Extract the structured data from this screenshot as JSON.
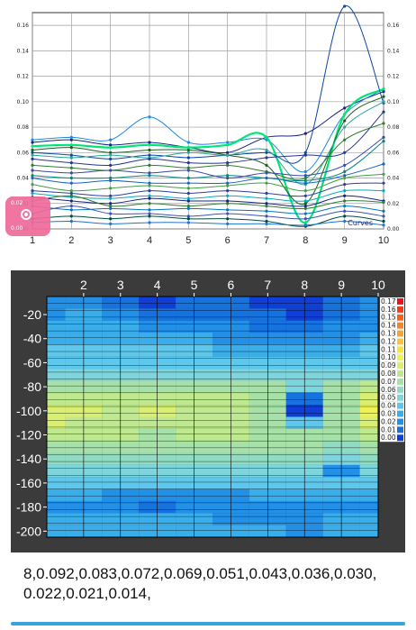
{
  "chart_data": [
    {
      "type": "line",
      "xlim": [
        1,
        10
      ],
      "ylim": [
        0,
        0.17
      ],
      "x_ticks": [
        "1",
        "2",
        "3",
        "4",
        "5",
        "6",
        "7",
        "8",
        "9",
        "10"
      ],
      "y_ticks": [
        "0.00",
        "0.02",
        "0.04",
        "0.06",
        "0.08",
        "0.10",
        "0.12",
        "0.14",
        "0.16"
      ],
      "grid": true,
      "annotation": "Curves",
      "x": [
        1,
        2,
        3,
        4,
        5,
        6,
        7,
        8,
        9,
        10
      ],
      "series": [
        {
          "color": "#1a237e",
          "values": [
            0.068,
            0.07,
            0.066,
            0.068,
            0.064,
            0.06,
            0.072,
            0.075,
            0.095,
            0.108
          ]
        },
        {
          "color": "#1e88e5",
          "values": [
            0.07,
            0.072,
            0.07,
            0.088,
            0.068,
            0.068,
            0.07,
            0.045,
            0.09,
            0.11
          ]
        },
        {
          "color": "#00e676",
          "values": [
            0.065,
            0.066,
            0.064,
            0.066,
            0.064,
            0.066,
            0.072,
            0.005,
            0.09,
            0.11
          ]
        },
        {
          "color": "#1b5e20",
          "values": [
            0.062,
            0.064,
            0.06,
            0.062,
            0.062,
            0.058,
            0.05,
            0.02,
            0.085,
            0.104
          ]
        },
        {
          "color": "#0d47a1",
          "values": [
            0.06,
            0.058,
            0.055,
            0.058,
            0.056,
            0.058,
            0.06,
            0.06,
            0.175,
            0.099
          ]
        },
        {
          "color": "#26a69a",
          "values": [
            0.058,
            0.056,
            0.058,
            0.056,
            0.06,
            0.058,
            0.062,
            0.035,
            0.08,
            0.1
          ]
        },
        {
          "color": "#283593",
          "values": [
            0.055,
            0.052,
            0.05,
            0.055,
            0.052,
            0.052,
            0.056,
            0.058,
            0.06,
            0.092
          ]
        },
        {
          "color": "#2e7d32",
          "values": [
            0.05,
            0.048,
            0.046,
            0.05,
            0.048,
            0.05,
            0.045,
            0.04,
            0.07,
            0.083
          ]
        },
        {
          "color": "#3949ab",
          "values": [
            0.046,
            0.044,
            0.046,
            0.044,
            0.046,
            0.04,
            0.044,
            0.042,
            0.05,
            0.072
          ]
        },
        {
          "color": "#00897b",
          "values": [
            0.042,
            0.04,
            0.04,
            0.042,
            0.04,
            0.042,
            0.04,
            0.038,
            0.045,
            0.069
          ]
        },
        {
          "color": "#1565c0",
          "values": [
            0.04,
            0.036,
            0.038,
            0.036,
            0.036,
            0.036,
            0.04,
            0.036,
            0.042,
            0.051
          ]
        },
        {
          "color": "#43a047",
          "values": [
            0.035,
            0.03,
            0.032,
            0.034,
            0.032,
            0.034,
            0.036,
            0.03,
            0.04,
            0.043
          ]
        },
        {
          "color": "#303f9f",
          "values": [
            0.03,
            0.028,
            0.026,
            0.03,
            0.028,
            0.03,
            0.028,
            0.026,
            0.035,
            0.036
          ]
        },
        {
          "color": "#00acc1",
          "values": [
            0.028,
            0.025,
            0.024,
            0.026,
            0.024,
            0.026,
            0.024,
            0.022,
            0.03,
            0.03
          ]
        },
        {
          "color": "#1a237e",
          "values": [
            0.025,
            0.022,
            0.02,
            0.024,
            0.022,
            0.022,
            0.02,
            0.018,
            0.026,
            0.022
          ]
        },
        {
          "color": "#2e7d32",
          "values": [
            0.022,
            0.026,
            0.018,
            0.02,
            0.018,
            0.02,
            0.018,
            0.016,
            0.022,
            0.021
          ]
        },
        {
          "color": "#0277bd",
          "values": [
            0.018,
            0.015,
            0.016,
            0.015,
            0.016,
            0.015,
            0.014,
            0.012,
            0.018,
            0.014
          ]
        },
        {
          "color": "#3f51b5",
          "values": [
            0.012,
            0.018,
            0.012,
            0.012,
            0.01,
            0.012,
            0.01,
            0.008,
            0.014,
            0.01
          ]
        },
        {
          "color": "#004d40",
          "values": [
            0.008,
            0.01,
            0.008,
            0.01,
            0.008,
            0.008,
            0.006,
            0.002,
            0.01,
            0.006
          ]
        },
        {
          "color": "#1976d2",
          "values": [
            0.005,
            0.006,
            0.004,
            0.005,
            0.005,
            0.004,
            0.004,
            0.003,
            0.006,
            0.003
          ]
        }
      ]
    },
    {
      "type": "heatmap",
      "x_ticks": [
        "2",
        "3",
        "4",
        "5",
        "6",
        "7",
        "8",
        "9",
        "10"
      ],
      "y_ticks": [
        "-20",
        "-40",
        "-60",
        "-80",
        "-100",
        "-120",
        "-140",
        "-160",
        "-180",
        "-200"
      ],
      "xlim": [
        1,
        10
      ],
      "ylim": [
        -205,
        -5
      ],
      "colorbar_labels": [
        "0.17",
        "0.16",
        "0.15",
        "0.14",
        "0.13",
        "0.12",
        "0.11",
        "0.10",
        "0.09",
        "0.08",
        "0.07",
        "0.06",
        "0.05",
        "0.04",
        "0.03",
        "0.02",
        "0.01",
        "0.00"
      ],
      "colorbar_colors": [
        "#e8141a",
        "#f03c1a",
        "#f5621e",
        "#f5842a",
        "#f6a532",
        "#f7c53c",
        "#f6e33c",
        "#eef254",
        "#d9ef72",
        "#bfe98e",
        "#a6e2a8",
        "#8fdcc2",
        "#7dd6dd",
        "#5ec8ec",
        "#3aaeea",
        "#2390e8",
        "#1572df",
        "#0f3fd6"
      ],
      "z_row_depths": [
        -10,
        -20,
        -30,
        -40,
        -50,
        -60,
        -70,
        -80,
        -90,
        -100,
        -110,
        -120,
        -130,
        -140,
        -150,
        -160,
        -170,
        -180,
        -190,
        -200
      ],
      "z_rows": [
        [
          0.02,
          0.02,
          0.01,
          0.0,
          0.01,
          0.01,
          0.0,
          0.0,
          0.01,
          0.02
        ],
        [
          0.02,
          0.03,
          0.02,
          0.01,
          0.01,
          0.01,
          0.01,
          0.0,
          0.01,
          0.02
        ],
        [
          0.03,
          0.03,
          0.03,
          0.02,
          0.02,
          0.02,
          0.01,
          0.01,
          0.02,
          0.02
        ],
        [
          0.03,
          0.03,
          0.03,
          0.03,
          0.03,
          0.02,
          0.02,
          0.02,
          0.02,
          0.03
        ],
        [
          0.04,
          0.04,
          0.04,
          0.04,
          0.04,
          0.03,
          0.03,
          0.03,
          0.03,
          0.04
        ],
        [
          0.04,
          0.04,
          0.04,
          0.04,
          0.04,
          0.04,
          0.04,
          0.04,
          0.04,
          0.04
        ],
        [
          0.05,
          0.05,
          0.05,
          0.05,
          0.05,
          0.05,
          0.05,
          0.05,
          0.05,
          0.05
        ],
        [
          0.07,
          0.07,
          0.07,
          0.07,
          0.07,
          0.07,
          0.07,
          0.05,
          0.07,
          0.08
        ],
        [
          0.08,
          0.08,
          0.08,
          0.08,
          0.08,
          0.08,
          0.07,
          0.01,
          0.07,
          0.09
        ],
        [
          0.09,
          0.09,
          0.08,
          0.09,
          0.08,
          0.08,
          0.07,
          0.0,
          0.07,
          0.1
        ],
        [
          0.09,
          0.08,
          0.08,
          0.08,
          0.08,
          0.08,
          0.07,
          0.04,
          0.07,
          0.09
        ],
        [
          0.08,
          0.08,
          0.08,
          0.07,
          0.08,
          0.08,
          0.07,
          0.07,
          0.07,
          0.08
        ],
        [
          0.07,
          0.07,
          0.07,
          0.07,
          0.07,
          0.07,
          0.07,
          0.07,
          0.06,
          0.07
        ],
        [
          0.06,
          0.06,
          0.06,
          0.06,
          0.06,
          0.06,
          0.06,
          0.06,
          0.05,
          0.06
        ],
        [
          0.05,
          0.05,
          0.05,
          0.05,
          0.05,
          0.05,
          0.05,
          0.05,
          0.02,
          0.05
        ],
        [
          0.04,
          0.04,
          0.04,
          0.04,
          0.04,
          0.04,
          0.04,
          0.04,
          0.04,
          0.04
        ],
        [
          0.03,
          0.03,
          0.02,
          0.02,
          0.02,
          0.02,
          0.03,
          0.03,
          0.03,
          0.03
        ],
        [
          0.02,
          0.02,
          0.02,
          0.01,
          0.02,
          0.02,
          0.02,
          0.02,
          0.02,
          0.02
        ],
        [
          0.03,
          0.03,
          0.03,
          0.03,
          0.03,
          0.02,
          0.02,
          0.02,
          0.03,
          0.03
        ],
        [
          0.03,
          0.03,
          0.03,
          0.03,
          0.03,
          0.03,
          0.03,
          0.02,
          0.03,
          0.03
        ]
      ]
    }
  ],
  "zoom_button": {
    "top_label": "0.02",
    "bottom_label": "0.00"
  },
  "footer_values": "8,0.092,0.083,0.072,0.069,0.051,0.043,0.036,0.030, 0.022,0.021,0.014,"
}
